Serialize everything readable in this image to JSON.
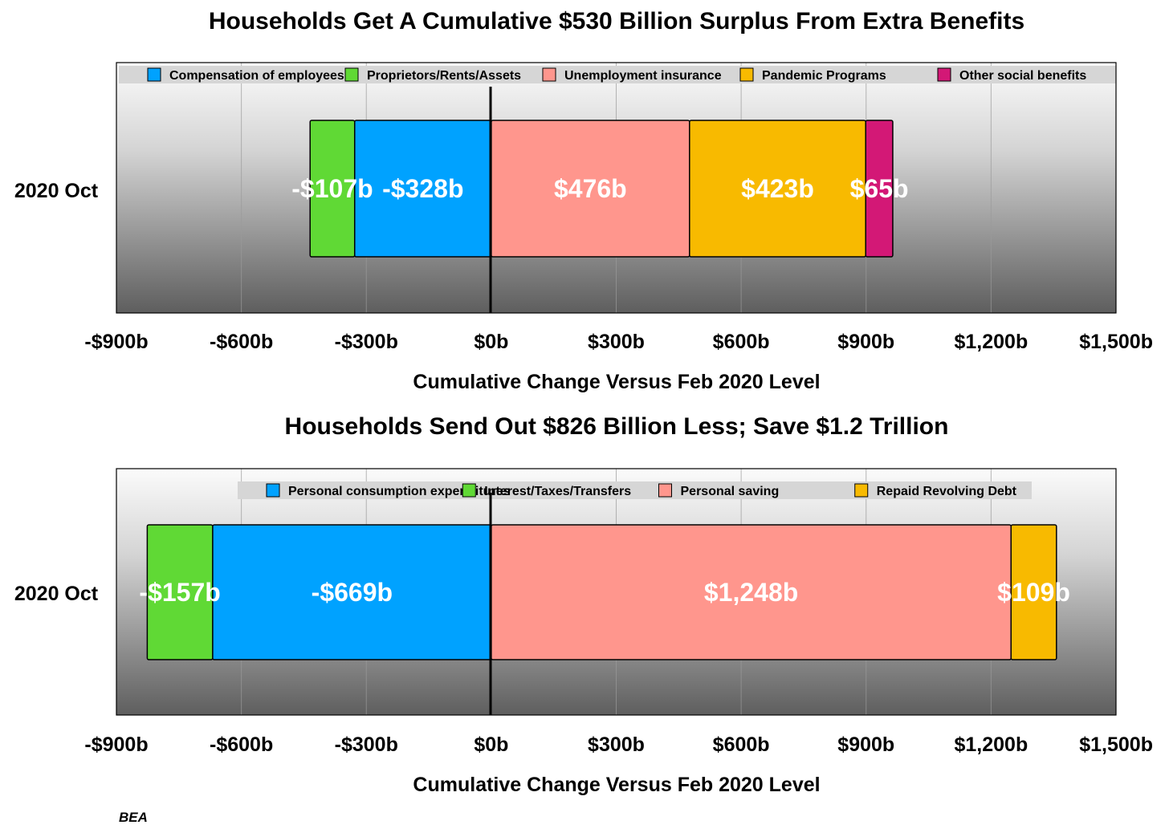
{
  "source": "BEA",
  "colors": {
    "blue": "#00a2ff",
    "green": "#60d935",
    "pink": "#ff968d",
    "gold": "#f8ba00",
    "magenta": "#d31876"
  },
  "chart_data": [
    {
      "type": "bar",
      "orientation": "horizontal-stacked",
      "title": "Households Get A Cumulative $530 Billion Surplus From Extra Benefits",
      "xlabel": "Cumulative Change Versus Feb 2020 Level",
      "xlim": [
        -900,
        1500
      ],
      "x_unit": "billions of dollars",
      "x_ticks": [
        -900,
        -600,
        -300,
        0,
        300,
        600,
        900,
        1200,
        1500
      ],
      "x_tick_labels": [
        "-$900b",
        "-$600b",
        "-$300b",
        "$0b",
        "$300b",
        "$600b",
        "$900b",
        "$1,200b",
        "$1,500b"
      ],
      "categories": [
        "2020 Oct"
      ],
      "grid": true,
      "legend_position": "top",
      "series": [
        {
          "name": "Compensation of employees",
          "values": [
            -328
          ],
          "label": "-$328b",
          "color": "#00a2ff"
        },
        {
          "name": "Proprietors/Rents/Assets",
          "values": [
            -107
          ],
          "label": "-$107b",
          "color": "#60d935"
        },
        {
          "name": "Unemployment insurance",
          "values": [
            476
          ],
          "label": "$476b",
          "color": "#ff968d"
        },
        {
          "name": "Pandemic Programs",
          "values": [
            423
          ],
          "label": "$423b",
          "color": "#f8ba00"
        },
        {
          "name": "Other social benefits",
          "values": [
            65
          ],
          "label": "$65b",
          "color": "#d31876"
        }
      ]
    },
    {
      "type": "bar",
      "orientation": "horizontal-stacked",
      "title": "Households Send Out $826 Billion Less; Save $1.2 Trillion",
      "xlabel": "Cumulative Change Versus Feb 2020 Level",
      "xlim": [
        -900,
        1500
      ],
      "x_unit": "billions of dollars",
      "x_ticks": [
        -900,
        -600,
        -300,
        0,
        300,
        600,
        900,
        1200,
        1500
      ],
      "x_tick_labels": [
        "-$900b",
        "-$600b",
        "-$300b",
        "$0b",
        "$300b",
        "$600b",
        "$900b",
        "$1,200b",
        "$1,500b"
      ],
      "categories": [
        "2020 Oct"
      ],
      "grid": true,
      "legend_position": "top",
      "series": [
        {
          "name": "Personal consumption expenditures",
          "values": [
            -669
          ],
          "label": "-$669b",
          "color": "#00a2ff"
        },
        {
          "name": "Interest/Taxes/Transfers",
          "values": [
            -157
          ],
          "label": "-$157b",
          "color": "#60d935"
        },
        {
          "name": "Personal saving",
          "values": [
            1248
          ],
          "label": "$1,248b",
          "color": "#ff968d"
        },
        {
          "name": "Repaid Revolving Debt",
          "values": [
            109
          ],
          "label": "$109b",
          "color": "#f8ba00"
        }
      ]
    }
  ]
}
